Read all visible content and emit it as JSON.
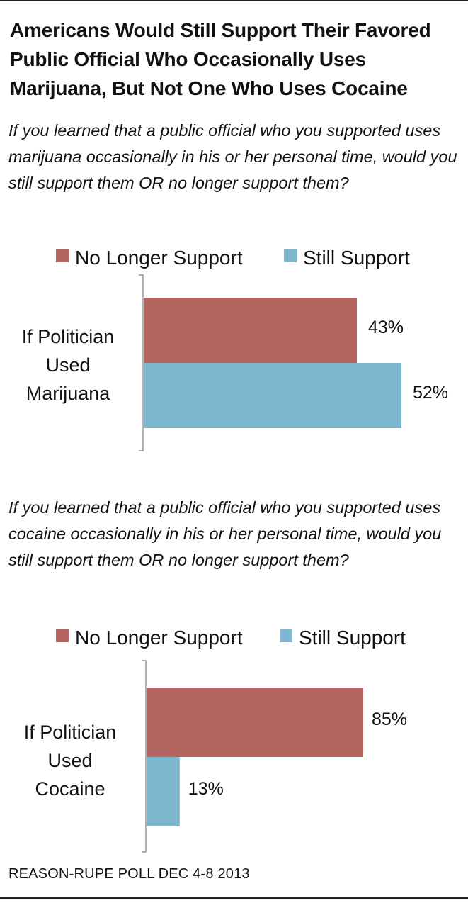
{
  "title": "Americans Would Still Support Their Favored Public Official Who Occasionally Uses Marijuana, But Not One Who Uses Cocaine",
  "source": "REASON-RUPE POLL DEC 4-8 2013",
  "colors": {
    "no_longer": "#b5655f",
    "still": "#7db7cf",
    "axis": "#999999"
  },
  "chart_data": [
    {
      "type": "bar",
      "orientation": "horizontal",
      "title": "If you learned that a public official who you supported uses marijuana occasionally in his or her personal time, would you still support them OR no longer support them?",
      "categories": [
        "If Politician Used Marijuana"
      ],
      "category_lines": [
        "If Politician",
        "Used",
        "Marijuana"
      ],
      "series": [
        {
          "name": "No Longer Support",
          "values": [
            43
          ],
          "labels": [
            "43%"
          ]
        },
        {
          "name": "Still Support",
          "values": [
            52
          ],
          "labels": [
            "52%"
          ]
        }
      ],
      "xlim": [
        0,
        100
      ],
      "grid": false,
      "legend": "top-right"
    },
    {
      "type": "bar",
      "orientation": "horizontal",
      "title": "If you learned that a public official who you supported uses cocaine occasionally in his or her personal time, would you still support them OR no longer support them?",
      "categories": [
        "If Politician Used Cocaine"
      ],
      "category_lines": [
        "If Politician",
        "Used",
        "Cocaine"
      ],
      "series": [
        {
          "name": "No Longer Support",
          "values": [
            85
          ],
          "labels": [
            "85%"
          ]
        },
        {
          "name": "Still Support",
          "values": [
            13
          ],
          "labels": [
            "13%"
          ]
        }
      ],
      "xlim": [
        0,
        100
      ],
      "grid": false,
      "legend": "top-right"
    }
  ]
}
